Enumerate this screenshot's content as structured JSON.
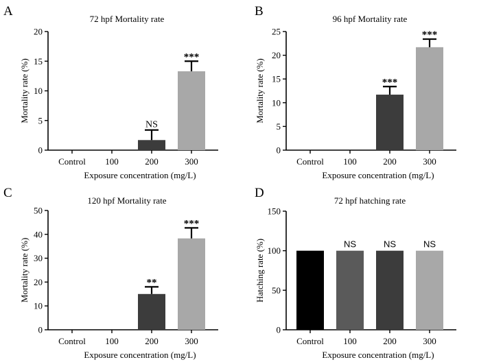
{
  "chart_data": [
    {
      "type": "bar",
      "panel": "A",
      "title": "72 hpf Mortality rate",
      "xlabel": "Exposure concentration (mg/L)",
      "ylabel": "Mortality rate (%)",
      "categories": [
        "Control",
        "100",
        "200",
        "300"
      ],
      "values": [
        0,
        0,
        1.7,
        13.3
      ],
      "errors": [
        0,
        0,
        1.7,
        1.7
      ],
      "significance": [
        "",
        "",
        "NS",
        "***"
      ],
      "ylim": [
        0,
        20
      ],
      "yticks": [
        0,
        5,
        10,
        15,
        20
      ],
      "bar_colors": [
        "#000000",
        "#5a5a5a",
        "#3c3c3c",
        "#a8a8a8"
      ],
      "legend": "none",
      "grid": false
    },
    {
      "type": "bar",
      "panel": "B",
      "title": "96 hpf Mortality rate",
      "xlabel": "Exposure concentration (mg/L)",
      "ylabel": "Mortality rate (%)",
      "categories": [
        "Control",
        "100",
        "200",
        "300"
      ],
      "values": [
        0,
        0,
        11.7,
        21.7
      ],
      "errors": [
        0,
        0,
        1.7,
        1.7
      ],
      "significance": [
        "",
        "",
        "***",
        "***"
      ],
      "ylim": [
        0,
        25
      ],
      "yticks": [
        0,
        5,
        10,
        15,
        20,
        25
      ],
      "bar_colors": [
        "#000000",
        "#5a5a5a",
        "#3c3c3c",
        "#a8a8a8"
      ],
      "legend": "none",
      "grid": false
    },
    {
      "type": "bar",
      "panel": "C",
      "title": "120 hpf Mortality rate",
      "xlabel": "Exposure concentration (mg/L)",
      "ylabel": "Mortality rate (%)",
      "categories": [
        "Control",
        "100",
        "200",
        "300"
      ],
      "values": [
        0,
        0,
        15,
        38.3
      ],
      "errors": [
        0,
        0,
        3,
        4.4
      ],
      "significance": [
        "",
        "",
        "**",
        "***"
      ],
      "ylim": [
        0,
        50
      ],
      "yticks": [
        0,
        10,
        20,
        30,
        40,
        50
      ],
      "bar_colors": [
        "#000000",
        "#5a5a5a",
        "#3c3c3c",
        "#a8a8a8"
      ],
      "legend": "none",
      "grid": false
    },
    {
      "type": "bar",
      "panel": "D",
      "title": "72 hpf hatching rate",
      "xlabel": "Exposure concentration (mg/L)",
      "ylabel": "Hatching rate (%)",
      "categories": [
        "Control",
        "100",
        "200",
        "300"
      ],
      "values": [
        100,
        100,
        100,
        100
      ],
      "errors": [
        0,
        0,
        0,
        0
      ],
      "significance": [
        "",
        "NS",
        "NS",
        "NS"
      ],
      "ylim": [
        0,
        150
      ],
      "yticks": [
        0,
        50,
        100,
        150
      ],
      "bar_colors": [
        "#000000",
        "#5a5a5a",
        "#3c3c3c",
        "#a8a8a8"
      ],
      "legend": "none",
      "grid": false
    }
  ]
}
